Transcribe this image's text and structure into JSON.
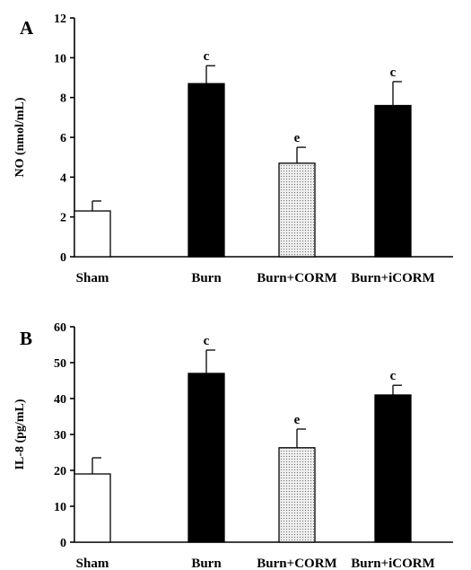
{
  "chart_data": [
    {
      "type": "bar",
      "panel": "A",
      "categories": [
        "Sham",
        "Burn",
        "Burn+CORM",
        "Burn+iCORM"
      ],
      "values": [
        2.3,
        8.7,
        4.7,
        7.6
      ],
      "errors": [
        0.5,
        0.9,
        0.8,
        1.2
      ],
      "annotations": [
        "",
        "c",
        "e",
        "c"
      ],
      "fills": [
        "white",
        "black",
        "dotted",
        "black"
      ],
      "ylabel": "NO (nmol/mL)",
      "ylim": [
        0,
        12
      ],
      "yticks": [
        0,
        2,
        4,
        6,
        8,
        10,
        12
      ],
      "grid": false
    },
    {
      "type": "bar",
      "panel": "B",
      "categories": [
        "Sham",
        "Burn",
        "Burn+CORM",
        "Burn+iCORM"
      ],
      "values": [
        19,
        47,
        26.3,
        41
      ],
      "errors": [
        4.5,
        6.5,
        5.2,
        2.7
      ],
      "annotations": [
        "",
        "c",
        "e",
        "c"
      ],
      "fills": [
        "white",
        "black",
        "dotted",
        "black"
      ],
      "ylabel": "IL-8 (pg/mL)",
      "ylim": [
        0,
        60
      ],
      "yticks": [
        0,
        10,
        20,
        30,
        40,
        50,
        60
      ],
      "grid": false
    }
  ],
  "colors": {
    "bar_black": "#000000",
    "bar_white": "#ffffff",
    "bar_dotted_bg": "#eeeeee",
    "bar_dotted_dot": "#6a6a6a",
    "axis": "#000000"
  }
}
